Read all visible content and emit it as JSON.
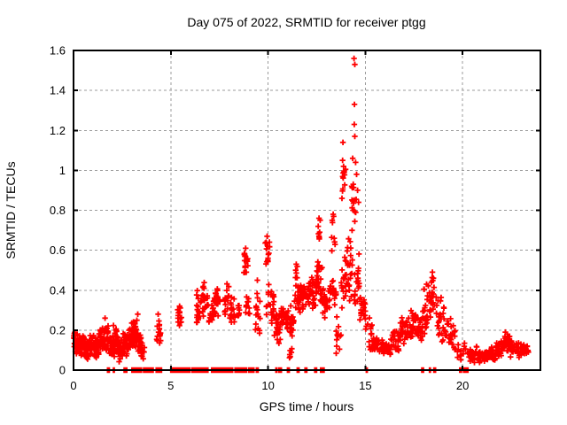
{
  "chart_data": {
    "type": "scatter",
    "title": "Day 075 of 2022, SRMTID for receiver ptgg",
    "xlabel": "GPS time / hours",
    "ylabel": "SRMTID / TECUs",
    "xlim": [
      0,
      24
    ],
    "ylim": [
      0,
      1.6
    ],
    "xticks": [
      0,
      5,
      10,
      15,
      20
    ],
    "yticks": [
      0,
      0.2,
      0.4,
      0.6,
      0.8,
      1,
      1.2,
      1.4,
      1.6
    ],
    "grid": true,
    "grid_style": "dashed",
    "legend": "none",
    "marker": "plus",
    "marker_color": "#ff0000",
    "grid_color": "#9b9b9b",
    "border_color": "#000000",
    "series_name": "SRMTID",
    "notable_points": [
      [
        14.42,
        1.56
      ],
      [
        14.46,
        1.53
      ],
      [
        14.44,
        1.33
      ],
      [
        14.43,
        1.23
      ],
      [
        14.46,
        1.17
      ],
      [
        13.85,
        1.14
      ],
      [
        13.83,
        1.05
      ],
      [
        13.88,
        1.02
      ],
      [
        13.9,
        0.99
      ],
      [
        14.35,
        1.06
      ],
      [
        14.5,
        1.04
      ],
      [
        14.55,
        0.98
      ],
      [
        14.3,
        0.92
      ],
      [
        14.6,
        0.9
      ],
      [
        13.8,
        0.86
      ],
      [
        14.65,
        0.84
      ],
      [
        13.35,
        0.78
      ],
      [
        13.3,
        0.75
      ],
      [
        13.4,
        0.66
      ],
      [
        12.62,
        0.76
      ],
      [
        12.58,
        0.72
      ],
      [
        12.65,
        0.69
      ],
      [
        9.95,
        0.67
      ],
      [
        9.9,
        0.64
      ],
      [
        9.98,
        0.62
      ],
      [
        8.85,
        0.61
      ],
      [
        8.8,
        0.58
      ],
      [
        8.9,
        0.55
      ],
      [
        8.82,
        0.52
      ],
      [
        8.88,
        0.49
      ],
      [
        9.45,
        0.45
      ],
      [
        11.45,
        0.53
      ],
      [
        11.42,
        0.5
      ],
      [
        18.45,
        0.49
      ],
      [
        18.5,
        0.46
      ],
      [
        18.4,
        0.44
      ],
      [
        18.15,
        0.43
      ],
      [
        5.45,
        0.32
      ],
      [
        3.3,
        0.28
      ],
      [
        4.35,
        0.28
      ],
      [
        1.62,
        0.26
      ],
      [
        22.2,
        0.19
      ],
      [
        22.3,
        0.18
      ],
      [
        23.25,
        0.1
      ],
      [
        23.32,
        0.12
      ],
      [
        23.38,
        0.09
      ]
    ],
    "clusters_format": "[x_start_hours, x_end_hours, n_points, y_min_TECUs, y_max_TECUs]",
    "clusters": [
      [
        0.0,
        0.3,
        30,
        0.05,
        0.21
      ],
      [
        0.3,
        0.55,
        30,
        0.06,
        0.18
      ],
      [
        0.55,
        0.8,
        28,
        0.05,
        0.17
      ],
      [
        0.8,
        1.05,
        30,
        0.07,
        0.19
      ],
      [
        1.05,
        1.3,
        28,
        0.05,
        0.18
      ],
      [
        1.3,
        1.55,
        30,
        0.08,
        0.22
      ],
      [
        1.55,
        1.8,
        30,
        0.08,
        0.25
      ],
      [
        1.8,
        2.05,
        28,
        0.06,
        0.2
      ],
      [
        2.05,
        2.3,
        28,
        0.05,
        0.23
      ],
      [
        2.3,
        2.55,
        26,
        0.04,
        0.16
      ],
      [
        2.55,
        2.8,
        28,
        0.06,
        0.2
      ],
      [
        2.8,
        3.05,
        30,
        0.08,
        0.24
      ],
      [
        3.05,
        3.3,
        30,
        0.1,
        0.27
      ],
      [
        3.3,
        3.55,
        26,
        0.07,
        0.22
      ],
      [
        3.45,
        3.65,
        12,
        0.05,
        0.15
      ],
      [
        4.25,
        4.5,
        16,
        0.1,
        0.28
      ],
      [
        5.35,
        5.55,
        14,
        0.2,
        0.33
      ],
      [
        6.3,
        6.65,
        22,
        0.22,
        0.42
      ],
      [
        6.65,
        6.9,
        18,
        0.25,
        0.48
      ],
      [
        6.9,
        7.2,
        16,
        0.2,
        0.35
      ],
      [
        7.2,
        7.55,
        20,
        0.22,
        0.44
      ],
      [
        7.75,
        8.0,
        18,
        0.25,
        0.47
      ],
      [
        8.0,
        8.3,
        16,
        0.18,
        0.38
      ],
      [
        8.45,
        8.6,
        8,
        0.25,
        0.35
      ],
      [
        8.7,
        9.0,
        14,
        0.45,
        0.62
      ],
      [
        8.85,
        9.1,
        10,
        0.2,
        0.45
      ],
      [
        9.35,
        9.6,
        16,
        0.15,
        0.45
      ],
      [
        9.8,
        10.1,
        12,
        0.5,
        0.67
      ],
      [
        9.9,
        10.3,
        25,
        0.22,
        0.45
      ],
      [
        10.3,
        10.65,
        25,
        0.1,
        0.3
      ],
      [
        10.65,
        11.0,
        25,
        0.2,
        0.35
      ],
      [
        11.0,
        11.35,
        25,
        0.15,
        0.33
      ],
      [
        11.1,
        11.25,
        6,
        0.05,
        0.12
      ],
      [
        11.35,
        11.7,
        25,
        0.25,
        0.45
      ],
      [
        11.4,
        11.5,
        4,
        0.45,
        0.53
      ],
      [
        11.7,
        12.1,
        28,
        0.28,
        0.45
      ],
      [
        12.1,
        12.5,
        30,
        0.3,
        0.5
      ],
      [
        12.5,
        12.8,
        26,
        0.32,
        0.55
      ],
      [
        12.55,
        12.7,
        5,
        0.6,
        0.76
      ],
      [
        12.8,
        13.2,
        24,
        0.25,
        0.45
      ],
      [
        13.2,
        13.5,
        20,
        0.3,
        0.5
      ],
      [
        13.25,
        13.45,
        6,
        0.55,
        0.78
      ],
      [
        13.5,
        13.75,
        12,
        0.05,
        0.3
      ],
      [
        13.75,
        14.05,
        20,
        0.3,
        0.6
      ],
      [
        13.8,
        14.0,
        10,
        0.8,
        1.06
      ],
      [
        14.05,
        14.35,
        22,
        0.3,
        0.7
      ],
      [
        14.3,
        14.55,
        14,
        0.6,
        1.05
      ],
      [
        14.4,
        14.7,
        20,
        0.25,
        0.6
      ],
      [
        14.7,
        15.0,
        18,
        0.15,
        0.45
      ],
      [
        15.0,
        15.35,
        14,
        0.1,
        0.3
      ],
      [
        15.35,
        15.8,
        30,
        0.07,
        0.18
      ],
      [
        15.8,
        16.3,
        30,
        0.06,
        0.16
      ],
      [
        16.3,
        16.8,
        28,
        0.08,
        0.2
      ],
      [
        16.8,
        17.2,
        26,
        0.1,
        0.28
      ],
      [
        17.2,
        17.6,
        26,
        0.15,
        0.33
      ],
      [
        17.6,
        17.95,
        22,
        0.12,
        0.3
      ],
      [
        17.95,
        18.3,
        24,
        0.15,
        0.44
      ],
      [
        18.3,
        18.7,
        24,
        0.2,
        0.49
      ],
      [
        18.7,
        19.1,
        22,
        0.12,
        0.4
      ],
      [
        19.1,
        19.45,
        16,
        0.08,
        0.3
      ],
      [
        19.45,
        19.65,
        10,
        0.06,
        0.25
      ],
      [
        19.7,
        20.3,
        14,
        0.04,
        0.14
      ],
      [
        20.3,
        20.8,
        30,
        0.03,
        0.12
      ],
      [
        20.8,
        21.3,
        30,
        0.03,
        0.1
      ],
      [
        21.3,
        21.7,
        28,
        0.04,
        0.12
      ],
      [
        21.7,
        22.1,
        28,
        0.06,
        0.15
      ],
      [
        22.1,
        22.45,
        30,
        0.08,
        0.19
      ],
      [
        22.45,
        22.8,
        26,
        0.06,
        0.16
      ],
      [
        22.8,
        23.2,
        22,
        0.05,
        0.14
      ],
      [
        23.2,
        23.45,
        8,
        0.06,
        0.13
      ]
    ],
    "zero_value_runs_hours": [
      [
        1.75,
        1.85
      ],
      [
        2.05,
        2.12
      ],
      [
        2.6,
        2.75
      ],
      [
        3.0,
        3.5
      ],
      [
        3.6,
        4.1
      ],
      [
        4.25,
        4.55
      ],
      [
        5.0,
        6.0
      ],
      [
        6.1,
        6.95
      ],
      [
        7.1,
        8.2
      ],
      [
        8.3,
        8.9
      ],
      [
        9.0,
        9.3
      ],
      [
        9.4,
        9.5
      ],
      [
        10.4,
        10.48
      ],
      [
        10.55,
        10.7
      ],
      [
        11.0,
        11.12
      ],
      [
        11.5,
        11.62
      ],
      [
        11.9,
        12.02
      ],
      [
        12.4,
        12.52
      ],
      [
        12.7,
        12.92
      ],
      [
        15.05,
        15.12
      ],
      [
        17.9,
        18.02
      ],
      [
        18.3,
        18.38
      ],
      [
        18.52,
        18.62
      ],
      [
        19.85,
        19.95
      ],
      [
        20.05,
        20.3
      ]
    ]
  }
}
